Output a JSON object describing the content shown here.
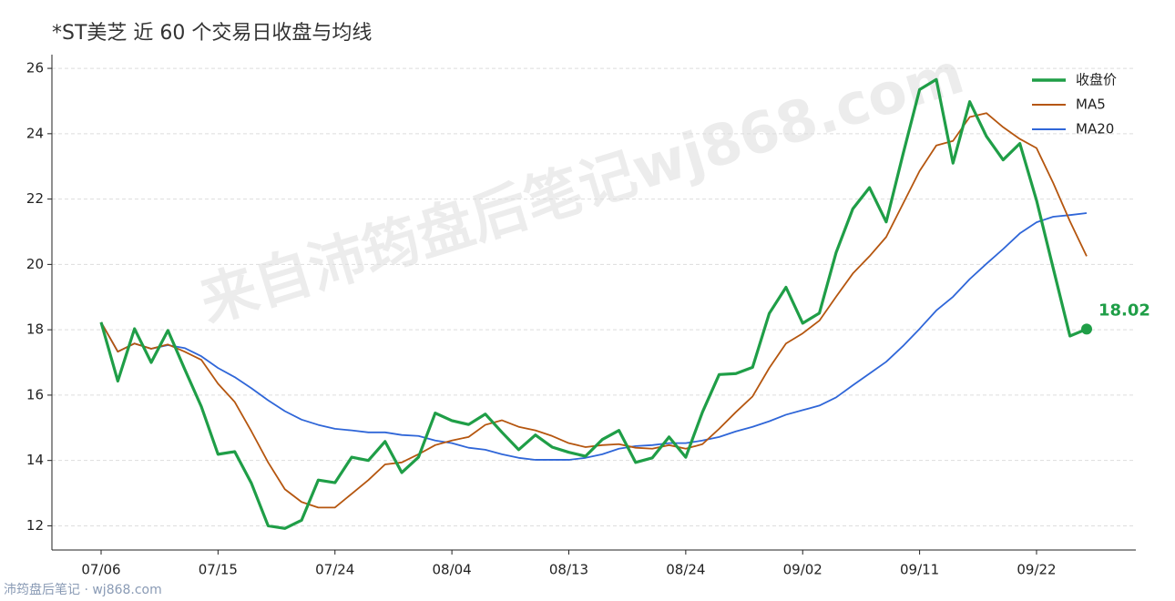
{
  "chart_data": {
    "type": "line",
    "title": "*ST美芝 近 60 个交易日收盘与均线",
    "watermark": "来自沛筠盘后笔记wj868.com",
    "footer": "沛筠盘后笔记 · wj868.com",
    "categories": [
      "07/06",
      null,
      null,
      null,
      null,
      null,
      null,
      "07/15",
      null,
      null,
      null,
      null,
      null,
      null,
      "07/24",
      null,
      null,
      null,
      null,
      null,
      null,
      "08/04",
      null,
      null,
      null,
      null,
      null,
      null,
      "08/13",
      null,
      null,
      null,
      null,
      null,
      null,
      "08/24",
      null,
      null,
      null,
      null,
      null,
      null,
      "09/02",
      null,
      null,
      null,
      null,
      null,
      null,
      "09/11",
      null,
      null,
      null,
      null,
      null,
      null,
      "09/22",
      null,
      null,
      null
    ],
    "series": [
      {
        "name": "收盘价",
        "color": "#1f9e47",
        "values": [
          18.23,
          16.43,
          18.03,
          17.0,
          17.98,
          16.8,
          15.65,
          14.19,
          14.27,
          13.3,
          12.0,
          11.92,
          12.17,
          13.4,
          13.32,
          14.1,
          14.0,
          14.58,
          13.63,
          14.1,
          15.45,
          15.22,
          15.1,
          15.42,
          14.86,
          14.33,
          14.78,
          14.41,
          14.25,
          14.13,
          14.64,
          14.92,
          13.94,
          14.08,
          14.72,
          14.1,
          15.48,
          16.63,
          16.66,
          16.85,
          18.5,
          19.3,
          18.2,
          18.51,
          20.36,
          21.7,
          22.35,
          21.3,
          23.36,
          25.35,
          25.66,
          23.1,
          24.98,
          23.92,
          23.2,
          23.7,
          21.96,
          19.88,
          17.81,
          18.02
        ]
      },
      {
        "name": "MA5",
        "color": "#b5560f",
        "values": [
          18.23,
          17.33,
          17.58,
          17.42,
          17.55,
          17.33,
          17.08,
          16.35,
          15.79,
          14.89,
          13.94,
          13.12,
          12.73,
          12.56,
          12.56,
          12.98,
          13.4,
          13.88,
          13.94,
          14.19,
          14.47,
          14.61,
          14.72,
          15.09,
          15.23,
          15.03,
          14.92,
          14.75,
          14.53,
          14.41,
          14.47,
          14.5,
          14.39,
          14.36,
          14.47,
          14.36,
          14.5,
          14.97,
          15.48,
          15.96,
          16.83,
          17.58,
          17.89,
          18.28,
          19.01,
          19.72,
          20.25,
          20.84,
          21.85,
          22.86,
          23.64,
          23.78,
          24.51,
          24.63,
          24.2,
          23.84,
          23.56,
          22.49,
          21.32,
          20.25
        ]
      },
      {
        "name": "MA20",
        "color": "#2f66d8",
        "values": [
          18.23,
          17.33,
          17.58,
          17.42,
          17.53,
          17.44,
          17.19,
          16.83,
          16.55,
          16.21,
          15.84,
          15.51,
          15.25,
          15.09,
          14.97,
          14.92,
          14.86,
          14.86,
          14.78,
          14.75,
          14.61,
          14.53,
          14.39,
          14.33,
          14.19,
          14.08,
          14.02,
          14.02,
          14.02,
          14.08,
          14.19,
          14.36,
          14.44,
          14.47,
          14.53,
          14.53,
          14.61,
          14.72,
          14.89,
          15.03,
          15.2,
          15.4,
          15.54,
          15.68,
          15.93,
          16.3,
          16.66,
          17.02,
          17.5,
          18.03,
          18.59,
          19.01,
          19.55,
          20.02,
          20.47,
          20.95,
          21.29,
          21.46,
          21.51,
          21.57
        ]
      }
    ],
    "ylim": [
      11.26,
      26.42
    ],
    "yticks": [
      12,
      14,
      16,
      18,
      20,
      22,
      24,
      26
    ],
    "grid": true,
    "legend": "upper right"
  }
}
